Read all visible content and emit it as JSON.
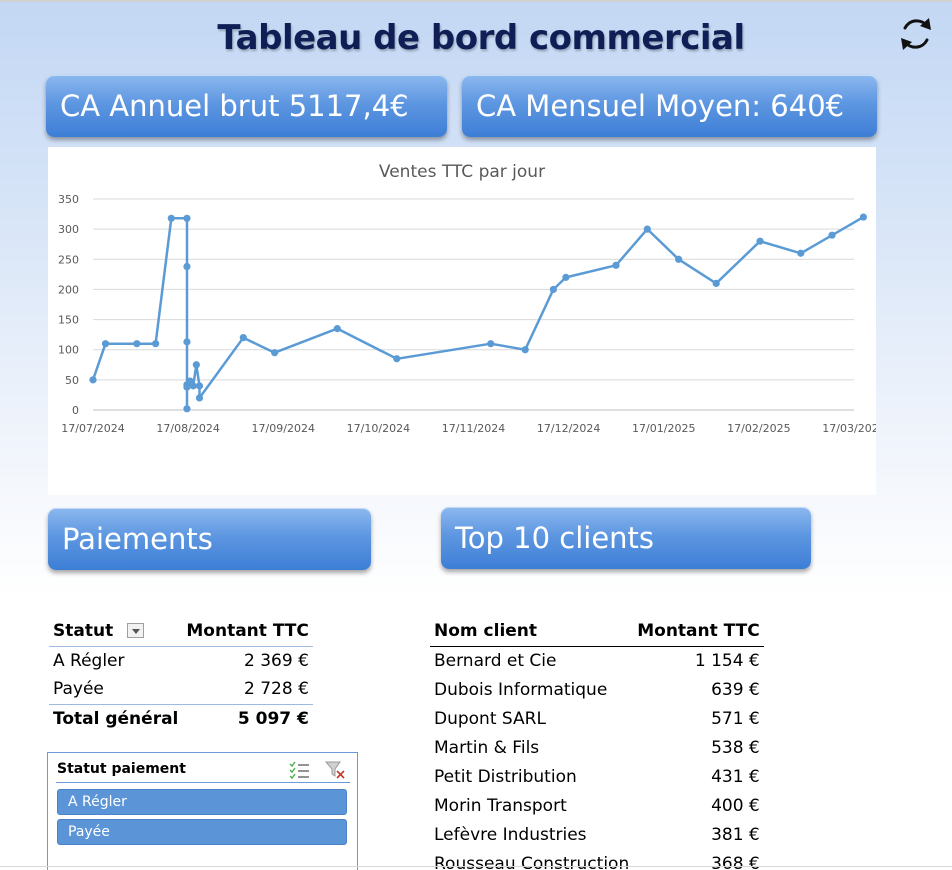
{
  "dashboard": {
    "title": "Tableau de bord commercial",
    "refresh_icon": "refresh-icon",
    "kpi_annual": "CA Annuel brut 5117,4€",
    "kpi_monthly": "CA Mensuel Moyen: 640€",
    "accent_color": "#5b9bd5",
    "title_color": "#0f1f55"
  },
  "sections": {
    "payments": "Paiements",
    "top_clients": "Top 10 clients"
  },
  "payments_table": {
    "headers": [
      "Statut",
      "Montant TTC"
    ],
    "rows": [
      {
        "status": "A Régler",
        "amount": "2 369 €"
      },
      {
        "status": "Payée",
        "amount": "2 728 €"
      }
    ],
    "total": {
      "label": "Total général",
      "amount": "5 097 €"
    }
  },
  "slicer": {
    "title": "Statut paiement",
    "multi_select_icon": "multi-select-icon",
    "clear_filter_icon": "clear-filter-icon",
    "items": [
      "A Régler",
      "Payée"
    ]
  },
  "clients_table": {
    "headers": [
      "Nom client",
      "Montant TTC"
    ],
    "rows": [
      {
        "name": "Bernard et Cie",
        "amount": "1 154 €"
      },
      {
        "name": "Dubois Informatique",
        "amount": "639 €"
      },
      {
        "name": "Dupont SARL",
        "amount": "571 €"
      },
      {
        "name": "Martin & Fils",
        "amount": "538 €"
      },
      {
        "name": "Petit Distribution",
        "amount": "431 €"
      },
      {
        "name": "Morin Transport",
        "amount": "400 €"
      },
      {
        "name": "Lefèvre Industries",
        "amount": "381 €"
      },
      {
        "name": "Rousseau Construction",
        "amount": "368 €"
      }
    ]
  },
  "chart_data": {
    "type": "line",
    "title": "Ventes TTC par jour",
    "xlabel": "",
    "ylabel": "",
    "ylim": [
      0,
      350
    ],
    "yticks": [
      0,
      50,
      100,
      150,
      200,
      250,
      300,
      350
    ],
    "x_tick_labels": [
      "17/07/2024",
      "17/08/2024",
      "17/09/2024",
      "17/10/2024",
      "17/11/2024",
      "17/12/2024",
      "17/01/2025",
      "17/02/2025",
      "17/03/2025"
    ],
    "x_start": "2024-07-17",
    "x_end": "2025-03-17",
    "grid": true,
    "legend": false,
    "color": "#5b9bd5",
    "series": [
      {
        "points": [
          {
            "x": "2024-07-17",
            "y": 50
          },
          {
            "x": "2024-07-21",
            "y": 110
          },
          {
            "x": "2024-07-31",
            "y": 110
          },
          {
            "x": "2024-08-06",
            "y": 110
          },
          {
            "x": "2024-08-11",
            "y": 318
          },
          {
            "x": "2024-08-16",
            "y": 318
          },
          {
            "x": "2024-08-16",
            "y": 238
          },
          {
            "x": "2024-08-16",
            "y": 113
          },
          {
            "x": "2024-08-16",
            "y": 2
          },
          {
            "x": "2024-08-16",
            "y": 38
          },
          {
            "x": "2024-08-16",
            "y": 42
          },
          {
            "x": "2024-08-17",
            "y": 48
          },
          {
            "x": "2024-08-18",
            "y": 40
          },
          {
            "x": "2024-08-19",
            "y": 75
          },
          {
            "x": "2024-08-20",
            "y": 40
          },
          {
            "x": "2024-08-20",
            "y": 20
          },
          {
            "x": "2024-09-03",
            "y": 120
          },
          {
            "x": "2024-09-13",
            "y": 95
          },
          {
            "x": "2024-10-03",
            "y": 135
          },
          {
            "x": "2024-10-22",
            "y": 85
          },
          {
            "x": "2024-11-21",
            "y": 110
          },
          {
            "x": "2024-12-02",
            "y": 100
          },
          {
            "x": "2024-12-11",
            "y": 200
          },
          {
            "x": "2024-12-15",
            "y": 220
          },
          {
            "x": "2024-12-31",
            "y": 240
          },
          {
            "x": "2025-01-10",
            "y": 300
          },
          {
            "x": "2025-01-20",
            "y": 250
          },
          {
            "x": "2025-02-01",
            "y": 210
          },
          {
            "x": "2025-02-15",
            "y": 280
          },
          {
            "x": "2025-02-28",
            "y": 260
          },
          {
            "x": "2025-03-10",
            "y": 290
          },
          {
            "x": "2025-03-20",
            "y": 320
          }
        ]
      }
    ]
  }
}
